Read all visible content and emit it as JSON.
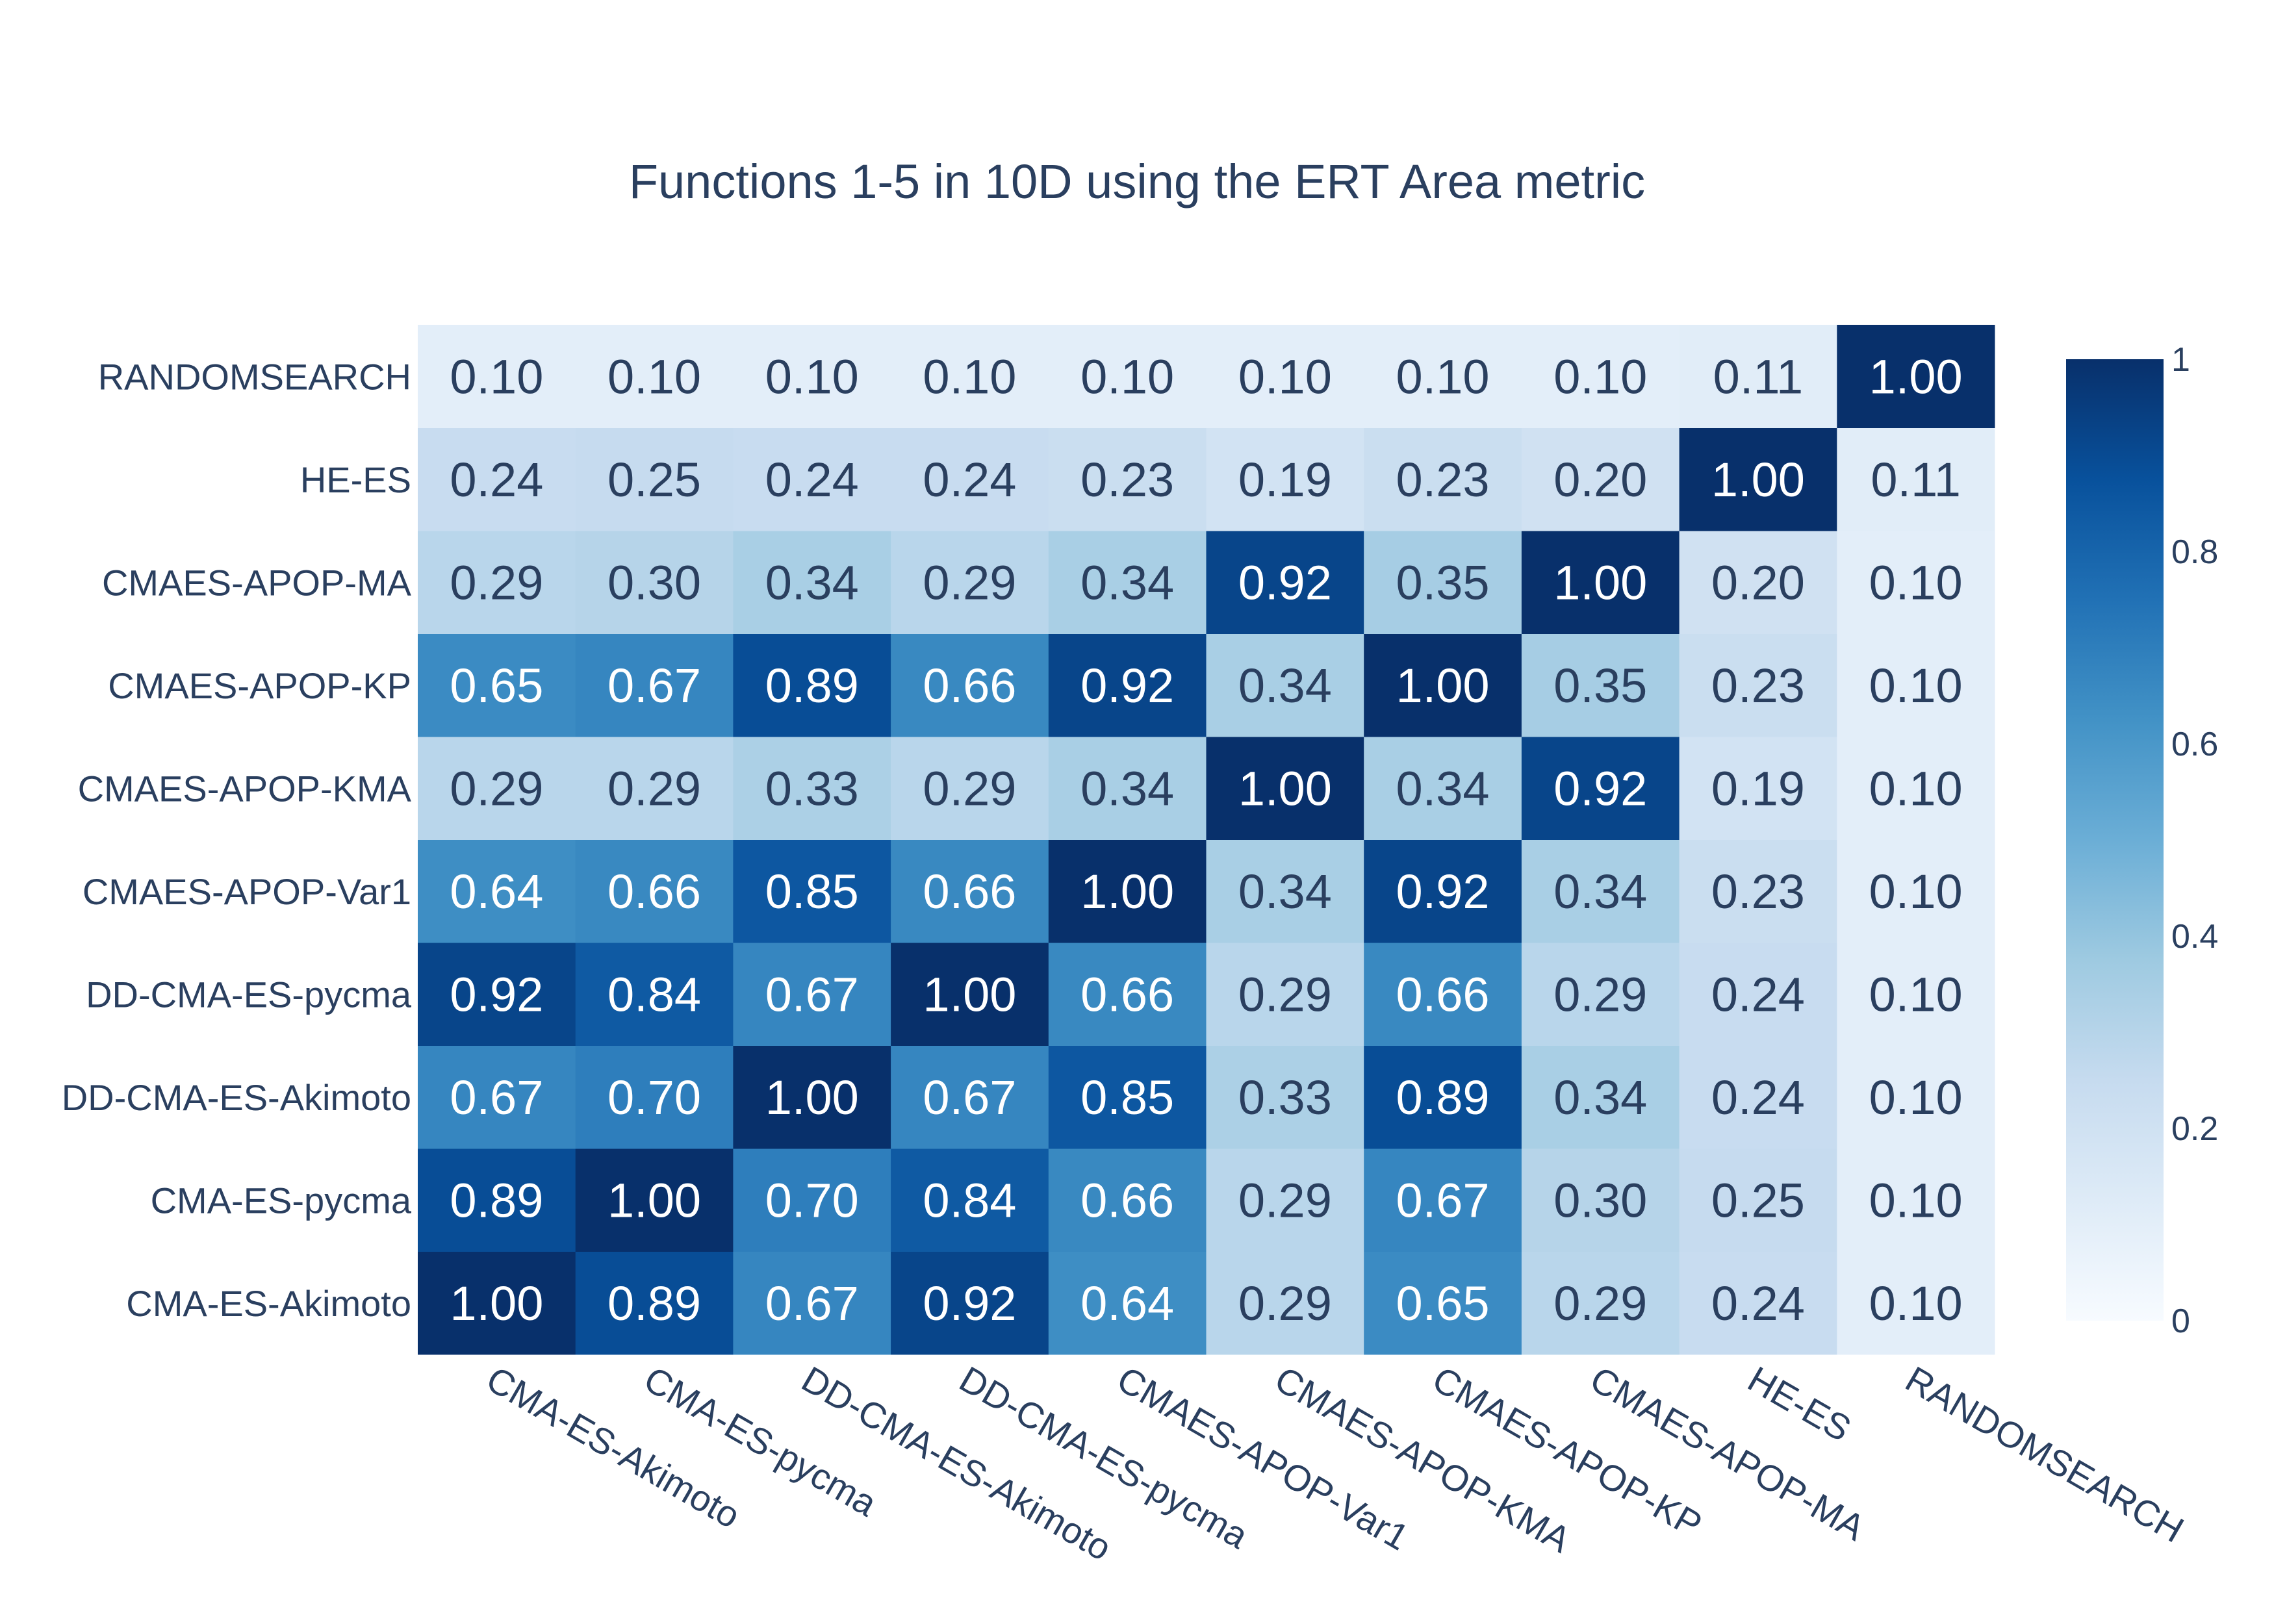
{
  "chart_data": {
    "type": "heatmap",
    "title": "Functions 1-5 in 10D using the ERT Area metric",
    "x": [
      "CMA-ES-Akimoto",
      "CMA-ES-pycma",
      "DD-CMA-ES-Akimoto",
      "DD-CMA-ES-pycma",
      "CMAES-APOP-Var1",
      "CMAES-APOP-KMA",
      "CMAES-APOP-KP",
      "CMAES-APOP-MA",
      "HE-ES",
      "RANDOMSEARCH"
    ],
    "y": [
      "CMA-ES-Akimoto",
      "CMA-ES-pycma",
      "DD-CMA-ES-Akimoto",
      "DD-CMA-ES-pycma",
      "CMAES-APOP-Var1",
      "CMAES-APOP-KMA",
      "CMAES-APOP-KP",
      "CMAES-APOP-MA",
      "HE-ES",
      "RANDOMSEARCH"
    ],
    "z": [
      [
        1.0,
        0.89,
        0.67,
        0.92,
        0.64,
        0.29,
        0.65,
        0.29,
        0.24,
        0.1
      ],
      [
        0.89,
        1.0,
        0.7,
        0.84,
        0.66,
        0.29,
        0.67,
        0.3,
        0.25,
        0.1
      ],
      [
        0.67,
        0.7,
        1.0,
        0.67,
        0.85,
        0.33,
        0.89,
        0.34,
        0.24,
        0.1
      ],
      [
        0.92,
        0.84,
        0.67,
        1.0,
        0.66,
        0.29,
        0.66,
        0.29,
        0.24,
        0.1
      ],
      [
        0.64,
        0.66,
        0.85,
        0.66,
        1.0,
        0.34,
        0.92,
        0.34,
        0.23,
        0.1
      ],
      [
        0.29,
        0.29,
        0.33,
        0.29,
        0.34,
        1.0,
        0.34,
        0.92,
        0.19,
        0.1
      ],
      [
        0.65,
        0.67,
        0.89,
        0.66,
        0.92,
        0.34,
        1.0,
        0.35,
        0.23,
        0.1
      ],
      [
        0.29,
        0.3,
        0.34,
        0.29,
        0.34,
        0.92,
        0.35,
        1.0,
        0.2,
        0.1
      ],
      [
        0.24,
        0.25,
        0.24,
        0.24,
        0.23,
        0.19,
        0.23,
        0.2,
        1.0,
        0.11
      ],
      [
        0.1,
        0.1,
        0.1,
        0.1,
        0.1,
        0.1,
        0.1,
        0.1,
        0.11,
        1.0
      ]
    ],
    "zrange": [
      0,
      1
    ],
    "colorscale": "Blues",
    "colorbar": {
      "ticks": [
        "0",
        "0.2",
        "0.4",
        "0.6",
        "0.8",
        "1"
      ],
      "tick_values": [
        0,
        0.2,
        0.4,
        0.6,
        0.8,
        1
      ]
    },
    "colors": {
      "text_dark": "#2a3f5f",
      "text_light": "#ffffff"
    }
  }
}
